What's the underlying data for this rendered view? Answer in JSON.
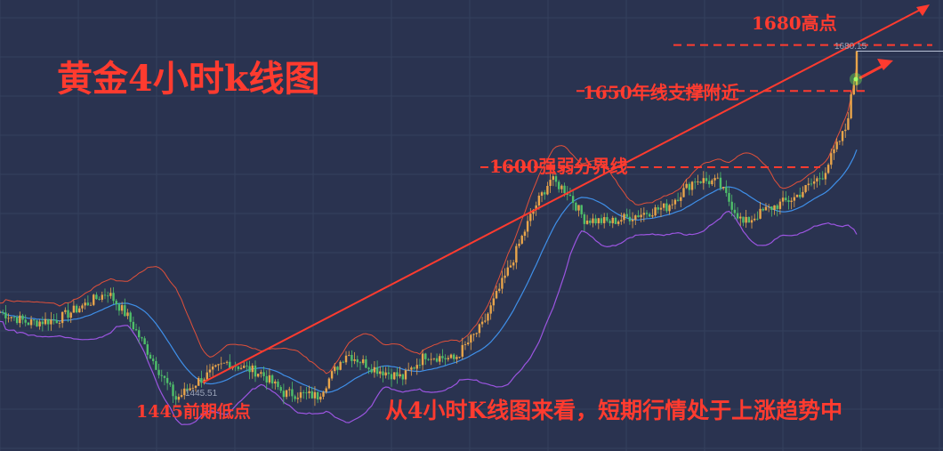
{
  "chart_data": {
    "type": "candlestick",
    "title": "黄金4小时k线图",
    "caption": "从4小时K线图来看，短期行情处于上涨趋势中",
    "annotations": {
      "high": "1680高点",
      "support": "1650年线支撑附近",
      "boundary": "1600强弱分界线",
      "low": "1445前期低点"
    },
    "price_labels": {
      "high": "1680.15",
      "low": "1445.51"
    },
    "levels": {
      "high": 1680.15,
      "support": 1650,
      "boundary": 1600,
      "low": 1445.51
    },
    "series_anchors": [
      {
        "i": 0,
        "p": 1505
      },
      {
        "i": 10,
        "p": 1498
      },
      {
        "i": 20,
        "p": 1500
      },
      {
        "i": 30,
        "p": 1510
      },
      {
        "i": 38,
        "p": 1518
      },
      {
        "i": 45,
        "p": 1502
      },
      {
        "i": 55,
        "p": 1470
      },
      {
        "i": 62,
        "p": 1448
      },
      {
        "i": 70,
        "p": 1460
      },
      {
        "i": 80,
        "p": 1472
      },
      {
        "i": 92,
        "p": 1465
      },
      {
        "i": 100,
        "p": 1452
      },
      {
        "i": 112,
        "p": 1450
      },
      {
        "i": 122,
        "p": 1478
      },
      {
        "i": 132,
        "p": 1468
      },
      {
        "i": 142,
        "p": 1462
      },
      {
        "i": 150,
        "p": 1477
      },
      {
        "i": 160,
        "p": 1474
      },
      {
        "i": 170,
        "p": 1496
      },
      {
        "i": 180,
        "p": 1536
      },
      {
        "i": 188,
        "p": 1572
      },
      {
        "i": 194,
        "p": 1592
      },
      {
        "i": 200,
        "p": 1584
      },
      {
        "i": 206,
        "p": 1566
      },
      {
        "i": 215,
        "p": 1564
      },
      {
        "i": 225,
        "p": 1569
      },
      {
        "i": 235,
        "p": 1574
      },
      {
        "i": 245,
        "p": 1592
      },
      {
        "i": 253,
        "p": 1590
      },
      {
        "i": 262,
        "p": 1563
      },
      {
        "i": 270,
        "p": 1572
      },
      {
        "i": 280,
        "p": 1580
      },
      {
        "i": 290,
        "p": 1595
      },
      {
        "i": 298,
        "p": 1625
      },
      {
        "i": 302,
        "p": 1665
      }
    ],
    "candle_count": 303,
    "ylim": [
      1425,
      1705
    ]
  }
}
